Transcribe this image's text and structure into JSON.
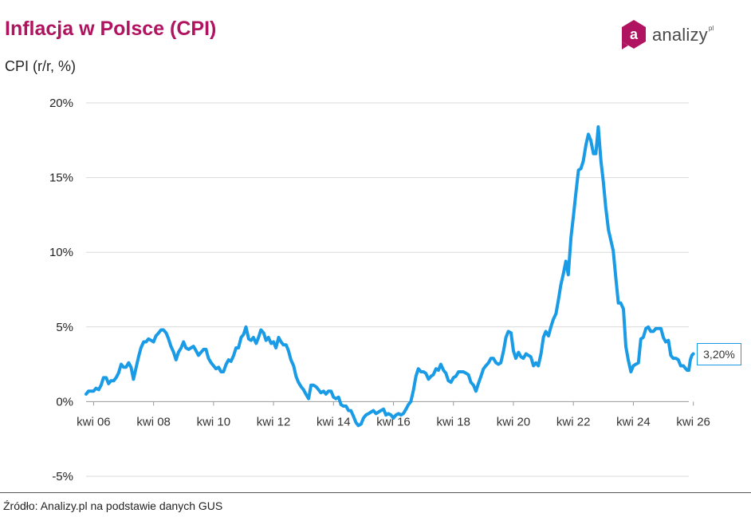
{
  "title": "Inflacja w Polsce (CPI)",
  "subtitle": "CPI (r/r, %)",
  "source": "Źródło: Analizy.pl na podstawie danych GUS",
  "logo": {
    "letter": "a",
    "text": "analizy",
    "suffix": "pl",
    "color": "#b0135f"
  },
  "last_value_label": "3,20%",
  "colors": {
    "line": "#1a9be6",
    "title": "#b0135f",
    "grid": "#d9d9d9"
  },
  "chart_data": {
    "type": "line",
    "title": "Inflacja w Polsce (CPI)",
    "ylabel": "CPI (r/r, %)",
    "xlabel": "",
    "ylim": [
      -5,
      20
    ],
    "yticks": [
      -5,
      0,
      5,
      10,
      15,
      20
    ],
    "ytick_labels": [
      "-5%",
      "0%",
      "5%",
      "10%",
      "15%",
      "20%"
    ],
    "xticks": [
      2006.25,
      2008.25,
      2010.25,
      2012.25,
      2014.25,
      2016.25,
      2018.25,
      2020.25,
      2022.25,
      2024.25,
      2026.25
    ],
    "xtick_labels": [
      "kwi 06",
      "kwi 08",
      "kwi 10",
      "kwi 12",
      "kwi 14",
      "kwi 16",
      "kwi 18",
      "kwi 20",
      "kwi 22",
      "kwi 24",
      "kwi 26"
    ],
    "xlim": [
      2006.0,
      2026.1
    ],
    "grid": true,
    "series": [
      {
        "name": "CPI r/r",
        "points": [
          [
            2006.0,
            0.5
          ],
          [
            2006.08,
            0.7
          ],
          [
            2006.17,
            0.7
          ],
          [
            2006.25,
            0.7
          ],
          [
            2006.33,
            0.9
          ],
          [
            2006.42,
            0.8
          ],
          [
            2006.5,
            1.1
          ],
          [
            2006.58,
            1.6
          ],
          [
            2006.67,
            1.6
          ],
          [
            2006.75,
            1.2
          ],
          [
            2006.83,
            1.4
          ],
          [
            2006.92,
            1.4
          ],
          [
            2007.0,
            1.6
          ],
          [
            2007.08,
            1.9
          ],
          [
            2007.17,
            2.5
          ],
          [
            2007.25,
            2.3
          ],
          [
            2007.33,
            2.3
          ],
          [
            2007.42,
            2.6
          ],
          [
            2007.5,
            2.3
          ],
          [
            2007.58,
            1.5
          ],
          [
            2007.67,
            2.3
          ],
          [
            2007.75,
            3.0
          ],
          [
            2007.83,
            3.6
          ],
          [
            2007.92,
            4.0
          ],
          [
            2008.0,
            4.0
          ],
          [
            2008.08,
            4.2
          ],
          [
            2008.17,
            4.1
          ],
          [
            2008.25,
            4.0
          ],
          [
            2008.33,
            4.4
          ],
          [
            2008.42,
            4.6
          ],
          [
            2008.5,
            4.8
          ],
          [
            2008.58,
            4.8
          ],
          [
            2008.67,
            4.6
          ],
          [
            2008.75,
            4.2
          ],
          [
            2008.83,
            3.7
          ],
          [
            2008.92,
            3.3
          ],
          [
            2009.0,
            2.8
          ],
          [
            2009.08,
            3.3
          ],
          [
            2009.17,
            3.6
          ],
          [
            2009.25,
            4.0
          ],
          [
            2009.33,
            3.6
          ],
          [
            2009.42,
            3.5
          ],
          [
            2009.5,
            3.6
          ],
          [
            2009.58,
            3.7
          ],
          [
            2009.67,
            3.4
          ],
          [
            2009.75,
            3.1
          ],
          [
            2009.83,
            3.3
          ],
          [
            2009.92,
            3.5
          ],
          [
            2010.0,
            3.5
          ],
          [
            2010.08,
            2.9
          ],
          [
            2010.17,
            2.6
          ],
          [
            2010.25,
            2.4
          ],
          [
            2010.33,
            2.2
          ],
          [
            2010.42,
            2.3
          ],
          [
            2010.5,
            2.0
          ],
          [
            2010.58,
            2.0
          ],
          [
            2010.67,
            2.5
          ],
          [
            2010.75,
            2.8
          ],
          [
            2010.83,
            2.7
          ],
          [
            2010.92,
            3.1
          ],
          [
            2011.0,
            3.6
          ],
          [
            2011.08,
            3.6
          ],
          [
            2011.17,
            4.3
          ],
          [
            2011.25,
            4.5
          ],
          [
            2011.33,
            5.0
          ],
          [
            2011.42,
            4.2
          ],
          [
            2011.5,
            4.1
          ],
          [
            2011.58,
            4.3
          ],
          [
            2011.67,
            3.9
          ],
          [
            2011.75,
            4.3
          ],
          [
            2011.83,
            4.8
          ],
          [
            2011.92,
            4.6
          ],
          [
            2012.0,
            4.1
          ],
          [
            2012.08,
            4.3
          ],
          [
            2012.17,
            3.9
          ],
          [
            2012.25,
            4.0
          ],
          [
            2012.33,
            3.6
          ],
          [
            2012.42,
            4.3
          ],
          [
            2012.5,
            4.0
          ],
          [
            2012.58,
            3.8
          ],
          [
            2012.67,
            3.8
          ],
          [
            2012.75,
            3.4
          ],
          [
            2012.83,
            2.8
          ],
          [
            2012.92,
            2.4
          ],
          [
            2013.0,
            1.7
          ],
          [
            2013.08,
            1.3
          ],
          [
            2013.17,
            1.0
          ],
          [
            2013.25,
            0.8
          ],
          [
            2013.33,
            0.5
          ],
          [
            2013.42,
            0.2
          ],
          [
            2013.5,
            1.1
          ],
          [
            2013.58,
            1.1
          ],
          [
            2013.67,
            1.0
          ],
          [
            2013.75,
            0.8
          ],
          [
            2013.83,
            0.6
          ],
          [
            2013.92,
            0.7
          ],
          [
            2014.0,
            0.5
          ],
          [
            2014.08,
            0.7
          ],
          [
            2014.17,
            0.7
          ],
          [
            2014.25,
            0.3
          ],
          [
            2014.33,
            0.2
          ],
          [
            2014.42,
            0.3
          ],
          [
            2014.5,
            -0.2
          ],
          [
            2014.58,
            -0.3
          ],
          [
            2014.67,
            -0.3
          ],
          [
            2014.75,
            -0.6
          ],
          [
            2014.83,
            -0.6
          ],
          [
            2014.92,
            -1.0
          ],
          [
            2015.0,
            -1.4
          ],
          [
            2015.08,
            -1.6
          ],
          [
            2015.17,
            -1.5
          ],
          [
            2015.25,
            -1.1
          ],
          [
            2015.33,
            -0.9
          ],
          [
            2015.42,
            -0.8
          ],
          [
            2015.5,
            -0.7
          ],
          [
            2015.58,
            -0.6
          ],
          [
            2015.67,
            -0.8
          ],
          [
            2015.75,
            -0.7
          ],
          [
            2015.83,
            -0.6
          ],
          [
            2015.92,
            -0.5
          ],
          [
            2016.0,
            -0.9
          ],
          [
            2016.08,
            -0.8
          ],
          [
            2016.17,
            -0.9
          ],
          [
            2016.25,
            -1.1
          ],
          [
            2016.33,
            -0.9
          ],
          [
            2016.42,
            -0.8
          ],
          [
            2016.5,
            -0.9
          ],
          [
            2016.58,
            -0.8
          ],
          [
            2016.67,
            -0.5
          ],
          [
            2016.75,
            -0.2
          ],
          [
            2016.83,
            0.0
          ],
          [
            2016.92,
            0.8
          ],
          [
            2017.0,
            1.7
          ],
          [
            2017.08,
            2.2
          ],
          [
            2017.17,
            2.0
          ],
          [
            2017.25,
            2.0
          ],
          [
            2017.33,
            1.9
          ],
          [
            2017.42,
            1.5
          ],
          [
            2017.5,
            1.7
          ],
          [
            2017.58,
            1.8
          ],
          [
            2017.67,
            2.2
          ],
          [
            2017.75,
            2.1
          ],
          [
            2017.83,
            2.5
          ],
          [
            2017.92,
            2.1
          ],
          [
            2018.0,
            1.9
          ],
          [
            2018.08,
            1.4
          ],
          [
            2018.17,
            1.3
          ],
          [
            2018.25,
            1.6
          ],
          [
            2018.33,
            1.7
          ],
          [
            2018.42,
            2.0
          ],
          [
            2018.5,
            2.0
          ],
          [
            2018.58,
            2.0
          ],
          [
            2018.67,
            1.9
          ],
          [
            2018.75,
            1.8
          ],
          [
            2018.83,
            1.3
          ],
          [
            2018.92,
            1.1
          ],
          [
            2019.0,
            0.7
          ],
          [
            2019.08,
            1.2
          ],
          [
            2019.17,
            1.7
          ],
          [
            2019.25,
            2.2
          ],
          [
            2019.33,
            2.4
          ],
          [
            2019.42,
            2.6
          ],
          [
            2019.5,
            2.9
          ],
          [
            2019.58,
            2.9
          ],
          [
            2019.67,
            2.6
          ],
          [
            2019.75,
            2.5
          ],
          [
            2019.83,
            2.6
          ],
          [
            2019.92,
            3.4
          ],
          [
            2020.0,
            4.3
          ],
          [
            2020.08,
            4.7
          ],
          [
            2020.17,
            4.6
          ],
          [
            2020.25,
            3.4
          ],
          [
            2020.33,
            2.9
          ],
          [
            2020.42,
            3.3
          ],
          [
            2020.5,
            3.0
          ],
          [
            2020.58,
            2.9
          ],
          [
            2020.67,
            3.2
          ],
          [
            2020.75,
            3.1
          ],
          [
            2020.83,
            3.0
          ],
          [
            2020.92,
            2.4
          ],
          [
            2021.0,
            2.6
          ],
          [
            2021.08,
            2.4
          ],
          [
            2021.17,
            3.2
          ],
          [
            2021.25,
            4.3
          ],
          [
            2021.33,
            4.7
          ],
          [
            2021.42,
            4.4
          ],
          [
            2021.5,
            5.0
          ],
          [
            2021.58,
            5.5
          ],
          [
            2021.67,
            5.9
          ],
          [
            2021.75,
            6.8
          ],
          [
            2021.83,
            7.8
          ],
          [
            2021.92,
            8.6
          ],
          [
            2022.0,
            9.4
          ],
          [
            2022.08,
            8.5
          ],
          [
            2022.17,
            11.0
          ],
          [
            2022.25,
            12.4
          ],
          [
            2022.33,
            13.9
          ],
          [
            2022.42,
            15.5
          ],
          [
            2022.5,
            15.6
          ],
          [
            2022.58,
            16.1
          ],
          [
            2022.67,
            17.2
          ],
          [
            2022.75,
            17.9
          ],
          [
            2022.83,
            17.5
          ],
          [
            2022.92,
            16.6
          ],
          [
            2023.0,
            16.6
          ],
          [
            2023.08,
            18.4
          ],
          [
            2023.17,
            16.1
          ],
          [
            2023.25,
            14.7
          ],
          [
            2023.33,
            13.0
          ],
          [
            2023.42,
            11.5
          ],
          [
            2023.5,
            10.8
          ],
          [
            2023.58,
            10.1
          ],
          [
            2023.67,
            8.2
          ],
          [
            2023.75,
            6.6
          ],
          [
            2023.83,
            6.6
          ],
          [
            2023.92,
            6.2
          ],
          [
            2024.0,
            3.7
          ],
          [
            2024.08,
            2.8
          ],
          [
            2024.17,
            2.0
          ],
          [
            2024.25,
            2.4
          ],
          [
            2024.33,
            2.5
          ],
          [
            2024.42,
            2.6
          ],
          [
            2024.5,
            4.2
          ],
          [
            2024.58,
            4.3
          ],
          [
            2024.67,
            4.9
          ],
          [
            2024.75,
            5.0
          ],
          [
            2024.83,
            4.7
          ],
          [
            2024.92,
            4.7
          ],
          [
            2025.0,
            4.9
          ],
          [
            2025.08,
            4.9
          ],
          [
            2025.17,
            4.9
          ],
          [
            2025.25,
            4.3
          ],
          [
            2025.33,
            4.0
          ],
          [
            2025.42,
            4.1
          ],
          [
            2025.5,
            3.1
          ],
          [
            2025.58,
            2.9
          ],
          [
            2025.67,
            2.9
          ],
          [
            2025.75,
            2.8
          ],
          [
            2025.83,
            2.4
          ],
          [
            2025.92,
            2.4
          ],
          [
            2026.0,
            2.2
          ],
          [
            2026.05,
            2.1
          ],
          [
            2026.1,
            2.1
          ],
          [
            2026.15,
            2.8
          ],
          [
            2026.2,
            3.1
          ],
          [
            2026.25,
            3.2
          ]
        ]
      }
    ]
  }
}
